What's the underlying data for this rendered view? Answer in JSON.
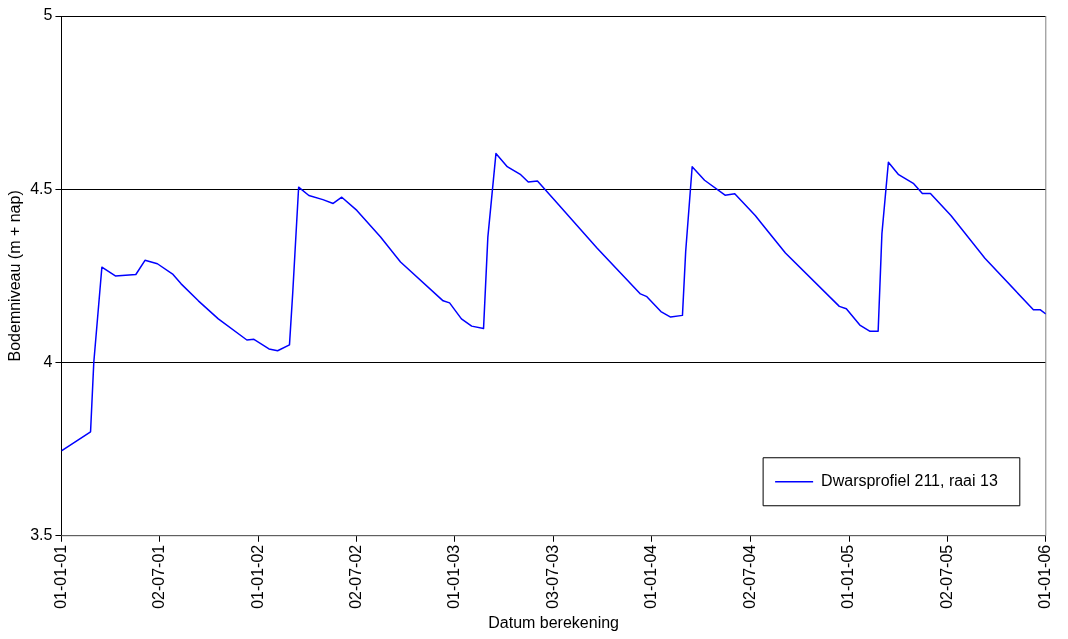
{
  "chart_data": {
    "type": "line",
    "xlabel": "Datum berekening",
    "ylabel": "Bodemniveau (m + nap)",
    "x": [
      "2001-01-01",
      "2001-02-24",
      "2001-03-02",
      "2001-03-17",
      "2001-04-11",
      "2001-05-19",
      "2001-06-05",
      "2001-06-28",
      "2001-07-27",
      "2001-08-11",
      "2001-09-12",
      "2001-10-19",
      "2001-12-11",
      "2001-12-24",
      "2002-01-21",
      "2002-02-06",
      "2002-02-28",
      "2002-03-06",
      "2002-03-17",
      "2002-04-05",
      "2002-05-01",
      "2002-05-20",
      "2002-06-05",
      "2002-07-03",
      "2002-08-16",
      "2002-09-22",
      "2002-12-10",
      "2002-12-22",
      "2003-01-13",
      "2003-02-01",
      "2003-02-23",
      "2003-03-03",
      "2003-03-18",
      "2003-04-08",
      "2003-05-03",
      "2003-05-17",
      "2003-06-03",
      "2003-07-07",
      "2003-09-21",
      "2003-12-11",
      "2003-12-23",
      "2004-01-18",
      "2004-02-05",
      "2004-02-27",
      "2004-03-04",
      "2004-03-16",
      "2004-04-08",
      "2004-05-16",
      "2004-06-03",
      "2004-07-11",
      "2004-09-05",
      "2004-12-14",
      "2004-12-27",
      "2005-01-21",
      "2005-02-09",
      "2005-02-24",
      "2005-03-03",
      "2005-03-15",
      "2005-04-03",
      "2005-05-01",
      "2005-05-17",
      "2005-06-01",
      "2005-07-09",
      "2005-09-10",
      "2005-12-09",
      "2005-12-22",
      "2006-01-01"
    ],
    "series": [
      {
        "name": "Dwarsprofiel 211, raai 13",
        "color": "#0000ff",
        "values": [
          3.745,
          3.8,
          4.0,
          4.275,
          4.25,
          4.254,
          4.295,
          4.285,
          4.254,
          4.227,
          4.178,
          4.126,
          4.065,
          4.067,
          4.039,
          4.034,
          4.051,
          4.2,
          4.506,
          4.482,
          4.47,
          4.459,
          4.477,
          4.439,
          4.362,
          4.29,
          4.178,
          4.172,
          4.126,
          4.105,
          4.098,
          4.362,
          4.603,
          4.565,
          4.542,
          4.521,
          4.524,
          4.465,
          4.331,
          4.198,
          4.19,
          4.147,
          4.131,
          4.136,
          4.321,
          4.565,
          4.526,
          4.483,
          4.487,
          4.424,
          4.316,
          4.162,
          4.155,
          4.108,
          4.09,
          4.09,
          4.372,
          4.578,
          4.542,
          4.516,
          4.488,
          4.488,
          4.424,
          4.301,
          4.152,
          4.152,
          4.14
        ]
      }
    ],
    "xlim": [
      "2001-01-01",
      "2006-01-01"
    ],
    "xticks": [
      {
        "value": "2001-01-01",
        "label": "01-01-01"
      },
      {
        "value": "2001-07-02",
        "label": "02-07-01"
      },
      {
        "value": "2002-01-01",
        "label": "01-01-02"
      },
      {
        "value": "2002-07-02",
        "label": "02-07-02"
      },
      {
        "value": "2003-01-01",
        "label": "01-01-03"
      },
      {
        "value": "2003-07-03",
        "label": "03-07-03"
      },
      {
        "value": "2004-01-01",
        "label": "01-01-04"
      },
      {
        "value": "2004-07-02",
        "label": "02-07-04"
      },
      {
        "value": "2005-01-01",
        "label": "01-01-05"
      },
      {
        "value": "2005-07-02",
        "label": "02-07-05"
      },
      {
        "value": "2006-01-01",
        "label": "01-01-06"
      }
    ],
    "ylim": [
      3.5,
      5
    ],
    "yticks": [
      3.5,
      4,
      4.5,
      5
    ],
    "grid": "y",
    "legend": "bottom right",
    "marker": "none",
    "line_style": "solid"
  }
}
